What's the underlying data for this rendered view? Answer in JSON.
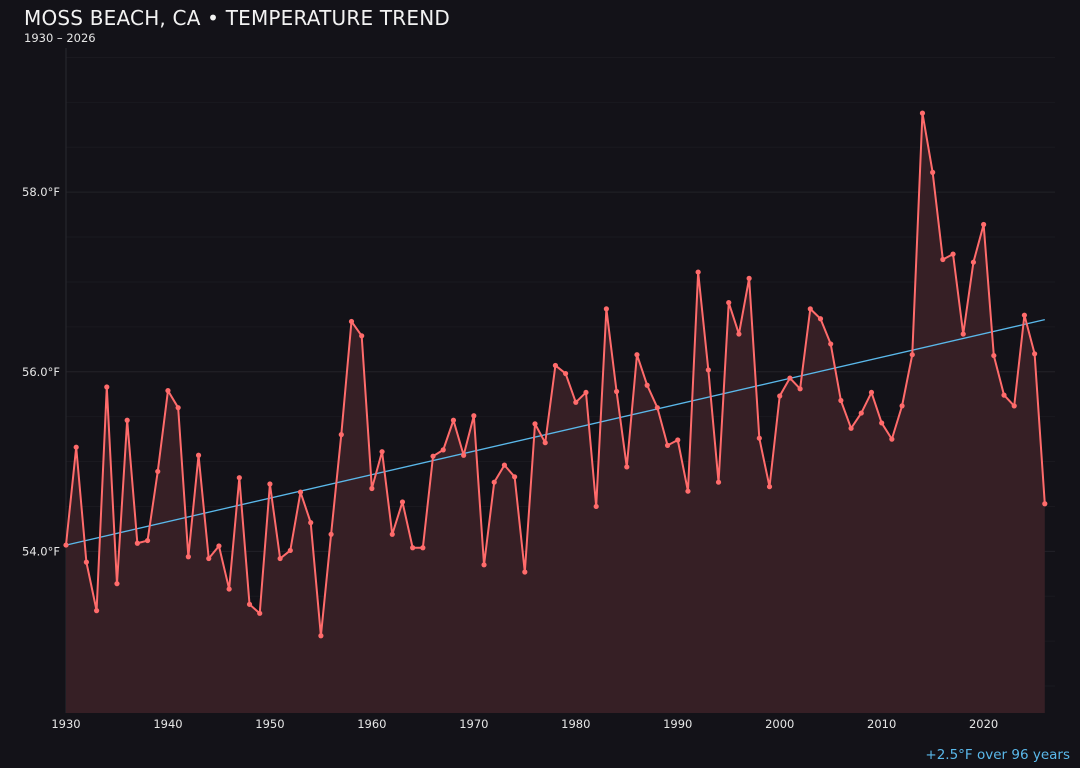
{
  "chart_data": {
    "type": "area",
    "title": "MOSS BEACH, CA • TEMPERATURE TREND",
    "subtitle": "1930 – 2026",
    "annotation": "+2.5°F over 96 years",
    "xlabel": "",
    "ylabel": "",
    "xlim": [
      1930,
      2027
    ],
    "ylim": [
      52.2,
      59.75
    ],
    "x_ticks": [
      "1930",
      "1940",
      "1950",
      "1960",
      "1970",
      "1980",
      "1990",
      "2000",
      "2010",
      "2020"
    ],
    "y_ticks": [
      {
        "value": 54,
        "label": "54.0°F"
      },
      {
        "value": 56,
        "label": "56.0°F"
      },
      {
        "value": 58,
        "label": "58.0°F"
      }
    ],
    "grid": true,
    "colors": {
      "series": "#ff6b6b",
      "fill": "#361f25",
      "trend": "#5ab8ea",
      "background": "#131218"
    },
    "x": [
      1930,
      1931,
      1932,
      1933,
      1934,
      1935,
      1936,
      1937,
      1938,
      1939,
      1940,
      1941,
      1942,
      1943,
      1944,
      1945,
      1946,
      1947,
      1948,
      1949,
      1950,
      1951,
      1952,
      1953,
      1954,
      1955,
      1956,
      1957,
      1958,
      1959,
      1960,
      1961,
      1962,
      1963,
      1964,
      1965,
      1966,
      1967,
      1968,
      1969,
      1970,
      1971,
      1972,
      1973,
      1974,
      1975,
      1976,
      1977,
      1978,
      1979,
      1980,
      1981,
      1982,
      1983,
      1984,
      1985,
      1986,
      1987,
      1988,
      1989,
      1990,
      1991,
      1992,
      1993,
      1994,
      1995,
      1996,
      1997,
      1998,
      1999,
      2000,
      2001,
      2002,
      2003,
      2004,
      2005,
      2006,
      2007,
      2008,
      2009,
      2010,
      2011,
      2012,
      2013,
      2014,
      2015,
      2016,
      2017,
      2018,
      2019,
      2020,
      2021,
      2022,
      2023,
      2024,
      2025,
      2026
    ],
    "series": [
      {
        "values": [
          54.07,
          55.16,
          53.88,
          53.34,
          55.83,
          53.64,
          55.46,
          54.09,
          54.12,
          54.89,
          55.79,
          55.6,
          53.94,
          55.07,
          53.92,
          54.06,
          53.58,
          54.82,
          53.41,
          53.31,
          54.75,
          53.92,
          54.01,
          54.66,
          54.32,
          53.06,
          54.19,
          55.3,
          56.56,
          56.4,
          54.7,
          55.11,
          54.19,
          54.55,
          54.04,
          54.04,
          55.06,
          55.13,
          55.46,
          55.07,
          55.51,
          53.85,
          54.77,
          54.96,
          54.83,
          53.77,
          55.42,
          55.21,
          56.07,
          55.98,
          55.66,
          55.77,
          54.5,
          56.7,
          55.78,
          54.94,
          56.19,
          55.85,
          55.6,
          55.18,
          55.24,
          54.67,
          57.11,
          56.02,
          54.77,
          56.77,
          56.42,
          57.04,
          55.26,
          54.72,
          55.73,
          55.93,
          55.81,
          56.7,
          56.59,
          56.31,
          55.68,
          55.37,
          55.54,
          55.77,
          55.43,
          55.25,
          55.62,
          56.19,
          58.88,
          58.22,
          57.25,
          57.31,
          56.42,
          57.22,
          57.64,
          56.18,
          55.74,
          55.62,
          56.63,
          56.2,
          54.53
        ]
      }
    ],
    "trend": {
      "x": [
        1930,
        2026
      ],
      "y": [
        54.07,
        56.58
      ]
    }
  }
}
